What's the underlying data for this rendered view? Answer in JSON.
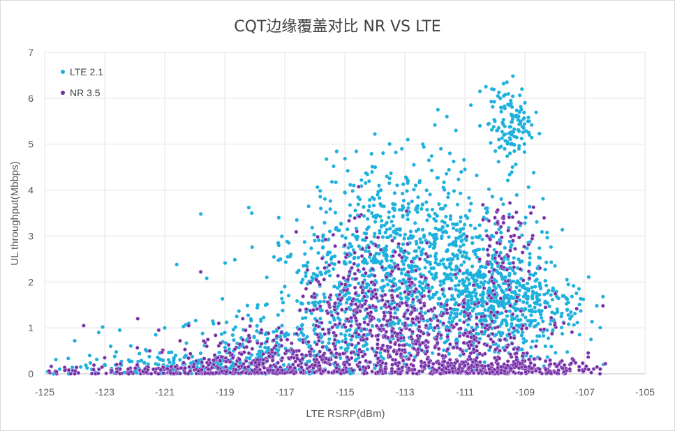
{
  "chart_data": {
    "type": "scatter",
    "title": "CQT边缘覆盖对比 NR VS LTE",
    "xlabel": "LTE RSRP(dBm)",
    "ylabel": "UL throughput(Mbbps)",
    "xlim": [
      -125,
      -105
    ],
    "ylim": [
      0,
      7
    ],
    "x_ticks": [
      "-125",
      "-123",
      "-121",
      "-119",
      "-117",
      "-115",
      "-113",
      "-111",
      "-109",
      "-107",
      "-105"
    ],
    "y_ticks": [
      "0",
      "1",
      "2",
      "3",
      "4",
      "5",
      "6",
      "7"
    ],
    "grid": true,
    "legend_position": "top-left",
    "series": [
      {
        "name": "LTE 2.1",
        "color": "#1fb1dd",
        "points": [
          [
            -124.9,
            0.05
          ],
          [
            -124.7,
            0.0
          ],
          [
            -124.5,
            0.1
          ],
          [
            -124.2,
            0.0
          ],
          [
            -124.0,
            0.72
          ],
          [
            -123.8,
            0.15
          ],
          [
            -123.5,
            0.4
          ],
          [
            -123.2,
            0.9
          ],
          [
            -123.0,
            0.2
          ],
          [
            -122.8,
            0.6
          ],
          [
            -122.5,
            0.95
          ],
          [
            -122.2,
            0.3
          ],
          [
            -121.9,
            1.2
          ],
          [
            -121.6,
            0.5
          ],
          [
            -121.3,
            0.85
          ],
          [
            -121.0,
            1.0
          ],
          [
            -120.6,
            2.38
          ],
          [
            -120.2,
            1.1
          ],
          [
            -119.8,
            3.48
          ],
          [
            -119.6,
            2.08
          ],
          [
            -119.4,
            1.15
          ],
          [
            -119.0,
            0.9
          ],
          [
            -118.6,
            1.25
          ],
          [
            -118.2,
            3.62
          ],
          [
            -118.1,
            3.5
          ],
          [
            -117.9,
            1.5
          ],
          [
            -117.6,
            2.1
          ],
          [
            -117.2,
            2.8
          ],
          [
            -117.2,
            3.4
          ],
          [
            -117.0,
            1.9
          ],
          [
            -116.8,
            2.6
          ],
          [
            -116.6,
            3.35
          ],
          [
            -116.3,
            2.2
          ],
          [
            -116.0,
            2.9
          ],
          [
            -115.8,
            3.6
          ],
          [
            -115.5,
            3.1
          ],
          [
            -115.3,
            4.17
          ],
          [
            -115.0,
            3.95
          ],
          [
            -114.9,
            4.42
          ],
          [
            -114.7,
            4.1
          ],
          [
            -114.5,
            3.8
          ],
          [
            -114.3,
            4.37
          ],
          [
            -114.1,
            3.5
          ],
          [
            -114.0,
            5.22
          ],
          [
            -113.8,
            4.0
          ],
          [
            -113.6,
            4.3
          ],
          [
            -113.4,
            3.7
          ],
          [
            -113.3,
            4.82
          ],
          [
            -113.1,
            4.9
          ],
          [
            -112.9,
            5.1
          ],
          [
            -112.7,
            4.55
          ],
          [
            -112.5,
            4.2
          ],
          [
            -112.4,
            5.0
          ],
          [
            -112.2,
            4.65
          ],
          [
            -112.0,
            5.42
          ],
          [
            -111.9,
            5.75
          ],
          [
            -111.8,
            4.9
          ],
          [
            -111.6,
            5.6
          ],
          [
            -111.5,
            4.8
          ],
          [
            -111.3,
            5.3
          ],
          [
            -111.0,
            4.45
          ],
          [
            -110.8,
            5.85
          ],
          [
            -110.5,
            6.15
          ],
          [
            -110.5,
            5.4
          ],
          [
            -110.3,
            6.25
          ],
          [
            -110.1,
            6.2
          ],
          [
            -110.0,
            5.5
          ],
          [
            -109.9,
            6.05
          ],
          [
            -109.8,
            5.8
          ],
          [
            -109.7,
            5.2
          ],
          [
            -109.6,
            6.35
          ],
          [
            -109.5,
            4.8
          ],
          [
            -109.4,
            6.48
          ],
          [
            -109.3,
            5.6
          ],
          [
            -109.2,
            4.9
          ],
          [
            -109.1,
            6.2
          ],
          [
            -109.0,
            5.9
          ],
          [
            -108.9,
            5.5
          ],
          [
            -110.2,
            4.02
          ],
          [
            -109.0,
            3.28
          ],
          [
            -108.5,
            2.52
          ],
          [
            -108.0,
            2.35
          ],
          [
            -107.6,
            2.05
          ],
          [
            -107.2,
            1.85
          ],
          [
            -106.8,
            0.75
          ],
          [
            -106.4,
            1.68
          ],
          [
            -116.5,
            0.3
          ],
          [
            -115.5,
            0.5
          ],
          [
            -114.5,
            1.0
          ],
          [
            -113.5,
            1.5
          ],
          [
            -112.5,
            2.0
          ],
          [
            -111.5,
            2.5
          ],
          [
            -110.5,
            3.0
          ],
          [
            -109.5,
            2.0
          ],
          [
            -108.5,
            1.5
          ],
          [
            -107.5,
            1.2
          ]
        ],
        "generated_clusters": [
          {
            "xc": -120.5,
            "yc": 0.15,
            "sx": 1.8,
            "sy": 0.15,
            "n": 140
          },
          {
            "xc": -117.5,
            "yc": 0.5,
            "sx": 1.6,
            "sy": 0.45,
            "n": 220
          },
          {
            "xc": -115.0,
            "yc": 1.4,
            "sx": 1.4,
            "sy": 1.0,
            "n": 360
          },
          {
            "xc": -113.2,
            "yc": 2.6,
            "sx": 1.3,
            "sy": 1.0,
            "n": 480
          },
          {
            "xc": -111.0,
            "yc": 2.0,
            "sx": 1.3,
            "sy": 0.9,
            "n": 460
          },
          {
            "xc": -109.5,
            "yc": 1.5,
            "sx": 1.1,
            "sy": 0.6,
            "n": 420
          },
          {
            "xc": -109.5,
            "yc": 5.4,
            "sx": 0.35,
            "sy": 0.4,
            "n": 110
          }
        ]
      },
      {
        "name": "NR 3.5",
        "color": "#7030a0",
        "points": [
          [
            -124.6,
            0.0
          ],
          [
            -124.0,
            0.0
          ],
          [
            -123.7,
            1.05
          ],
          [
            -123.3,
            0.0
          ],
          [
            -123.0,
            0.35
          ],
          [
            -122.6,
            0.2
          ],
          [
            -122.2,
            0.0
          ],
          [
            -121.9,
            1.2
          ],
          [
            -121.5,
            0.5
          ],
          [
            -121.2,
            0.95
          ],
          [
            -120.8,
            0.0
          ],
          [
            -120.2,
            1.05
          ],
          [
            -119.8,
            2.22
          ],
          [
            -119.6,
            0.6
          ],
          [
            -119.2,
            1.1
          ],
          [
            -118.8,
            0.4
          ],
          [
            -118.4,
            1.2
          ],
          [
            -117.8,
            0.9
          ],
          [
            -117.2,
            1.0
          ],
          [
            -116.6,
            0.4
          ],
          [
            -115.5,
            1.45
          ],
          [
            -115.0,
            2.8
          ],
          [
            -114.6,
            3.1
          ],
          [
            -114.2,
            1.8
          ],
          [
            -113.8,
            2.7
          ],
          [
            -113.4,
            1.6
          ],
          [
            -112.9,
            1.2
          ],
          [
            -112.5,
            2.5
          ],
          [
            -112.0,
            1.0
          ],
          [
            -111.6,
            0.5
          ],
          [
            -111.2,
            1.5
          ],
          [
            -110.9,
            0.9
          ],
          [
            -110.4,
            3.68
          ],
          [
            -110.0,
            3.4
          ],
          [
            -109.8,
            3.2
          ],
          [
            -109.5,
            3.72
          ],
          [
            -109.4,
            2.9
          ],
          [
            -109.2,
            3.3
          ],
          [
            -108.8,
            3.5
          ],
          [
            -108.5,
            2.3
          ],
          [
            -108.0,
            1.1
          ],
          [
            -107.5,
            0.2
          ],
          [
            -107.0,
            0.1
          ],
          [
            -106.4,
            1.48
          ],
          [
            -106.5,
            0.0
          ]
        ],
        "generated_clusters": [
          {
            "xc": -121.0,
            "yc": 0.05,
            "sx": 2.2,
            "sy": 0.08,
            "n": 180
          },
          {
            "xc": -117.5,
            "yc": 0.3,
            "sx": 1.5,
            "sy": 0.3,
            "n": 280
          },
          {
            "xc": -114.0,
            "yc": 1.1,
            "sx": 1.3,
            "sy": 0.9,
            "n": 420
          },
          {
            "xc": -111.5,
            "yc": 0.6,
            "sx": 1.8,
            "sy": 0.6,
            "n": 380
          },
          {
            "xc": -109.8,
            "yc": 0.1,
            "sx": 1.6,
            "sy": 0.1,
            "n": 260
          },
          {
            "xc": -109.6,
            "yc": 2.7,
            "sx": 0.5,
            "sy": 0.5,
            "n": 70
          }
        ]
      }
    ]
  }
}
